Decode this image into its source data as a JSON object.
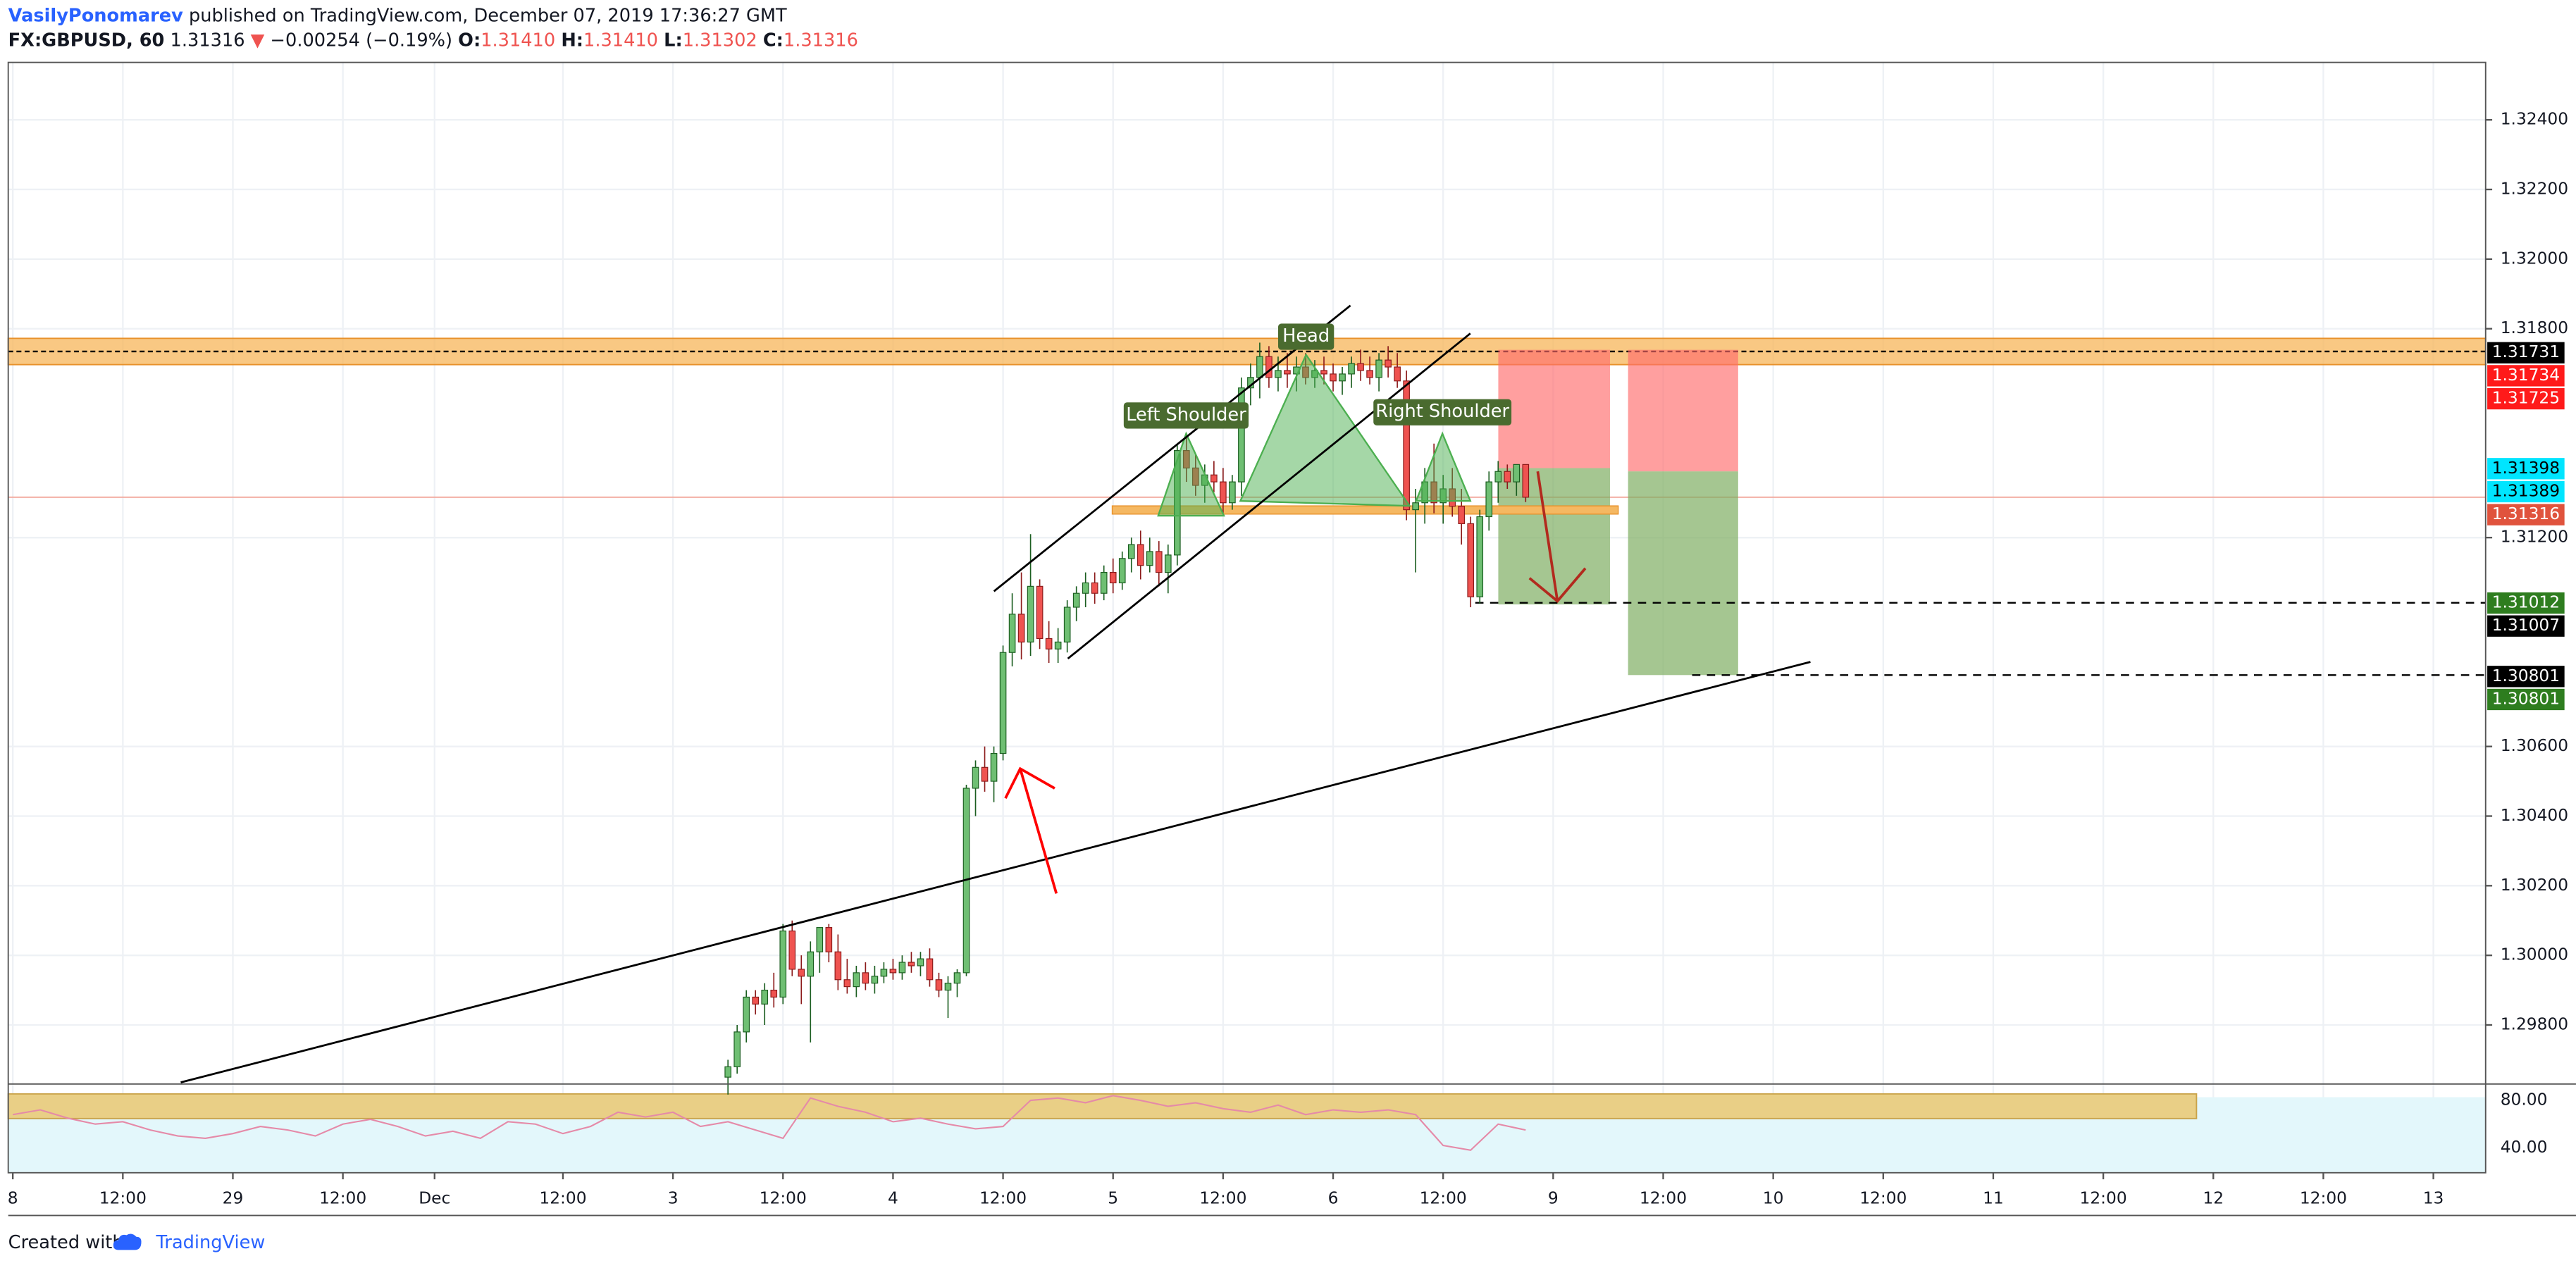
{
  "header": {
    "author": "VasilyPonomarev",
    "published": "published on TradingView.com, December 07, 2019 17:36:27 GMT",
    "symbol": "FX:GBPUSD, 60",
    "last": "1.31316",
    "arrow": "▼",
    "change": "−0.00254 (−0.19%)",
    "ohlc": [
      {
        "key": "O:",
        "value": "1.31410"
      },
      {
        "key": "H:",
        "value": "1.31410"
      },
      {
        "key": "L:",
        "value": "1.31302"
      },
      {
        "key": "C:",
        "value": "1.31316"
      }
    ]
  },
  "footer": {
    "created_with": "Created with",
    "brand": "TradingView"
  },
  "chart_data": {
    "type": "candlestick",
    "up_color": "#6fbf73",
    "down_color": "#ef5350",
    "grid": true,
    "x": [
      78,
      79,
      80,
      81,
      82,
      83,
      84,
      85,
      86,
      87,
      88,
      89,
      90,
      91,
      92,
      93,
      94,
      95,
      96,
      97,
      98,
      99,
      100,
      101,
      102,
      103,
      104,
      105,
      106,
      107,
      108,
      109,
      110,
      111,
      112,
      113,
      114,
      115,
      116,
      117,
      118,
      119,
      120,
      121,
      122,
      123,
      124,
      125,
      126,
      127,
      128,
      129,
      130,
      131,
      132,
      133,
      134,
      135,
      136,
      137,
      138,
      139,
      140,
      141,
      142,
      143,
      144,
      145,
      146,
      147,
      148,
      149,
      150,
      151,
      152,
      153,
      154,
      155,
      156,
      157,
      158,
      159,
      160,
      161,
      162,
      163,
      164,
      165
    ],
    "open": [
      1.2965,
      1.2968,
      1.2978,
      1.2988,
      1.2986,
      1.299,
      1.2988,
      1.3007,
      1.2996,
      1.2994,
      1.3001,
      1.3008,
      1.3001,
      1.2993,
      1.2991,
      1.2995,
      1.2992,
      1.2994,
      1.2996,
      1.2995,
      1.2998,
      1.2997,
      1.2999,
      1.2993,
      1.299,
      1.2992,
      1.2995,
      1.3048,
      1.3054,
      1.305,
      1.3058,
      1.3087,
      1.3098,
      1.309,
      1.3106,
      1.3091,
      1.3088,
      1.309,
      1.31,
      1.3104,
      1.3107,
      1.3104,
      1.311,
      1.3107,
      1.3114,
      1.3118,
      1.3112,
      1.3116,
      1.311,
      1.3115,
      1.3145,
      1.314,
      1.3135,
      1.3138,
      1.3136,
      1.313,
      1.3136,
      1.3163,
      1.3166,
      1.3172,
      1.3166,
      1.3168,
      1.3167,
      1.3169,
      1.3166,
      1.3168,
      1.3167,
      1.3165,
      1.3167,
      1.317,
      1.3168,
      1.3166,
      1.3171,
      1.3169,
      1.3165,
      1.3128,
      1.313,
      1.3136,
      1.313,
      1.3134,
      1.3129,
      1.3124,
      1.3103,
      1.3126,
      1.3136,
      1.3139,
      1.3136,
      1.3141
    ],
    "high": [
      1.297,
      1.298,
      1.299,
      1.299,
      1.2992,
      1.2995,
      1.3009,
      1.301,
      1.3,
      1.3004,
      1.3007,
      1.3009,
      1.3006,
      1.2999,
      1.2997,
      1.2998,
      1.2997,
      1.2998,
      1.2999,
      1.3,
      1.3001,
      1.3001,
      1.3002,
      1.2995,
      1.2994,
      1.2996,
      1.3049,
      1.3056,
      1.306,
      1.306,
      1.3089,
      1.3104,
      1.311,
      1.3121,
      1.3108,
      1.3096,
      1.3094,
      1.3102,
      1.3106,
      1.311,
      1.311,
      1.3112,
      1.3114,
      1.3116,
      1.312,
      1.3122,
      1.312,
      1.3119,
      1.3118,
      1.3147,
      1.315,
      1.3144,
      1.3141,
      1.3142,
      1.314,
      1.3138,
      1.3166,
      1.317,
      1.3176,
      1.3175,
      1.3172,
      1.3173,
      1.3172,
      1.3173,
      1.3171,
      1.3172,
      1.317,
      1.3169,
      1.3172,
      1.3174,
      1.3172,
      1.3173,
      1.3175,
      1.3173,
      1.3168,
      1.3134,
      1.314,
      1.3147,
      1.3138,
      1.314,
      1.3134,
      1.3126,
      1.3128,
      1.3139,
      1.3142,
      1.3141,
      1.3141,
      1.3141
    ],
    "low": [
      1.296,
      1.2966,
      1.2975,
      1.2983,
      1.298,
      1.2985,
      1.2986,
      1.2994,
      1.2986,
      1.2975,
      1.2995,
      1.2998,
      1.299,
      1.2989,
      1.2988,
      1.299,
      1.2989,
      1.2992,
      1.2993,
      1.2993,
      1.2995,
      1.2994,
      1.2991,
      1.2988,
      1.2982,
      1.2988,
      1.2994,
      1.304,
      1.3047,
      1.3044,
      1.3056,
      1.3083,
      1.3085,
      1.3086,
      1.3088,
      1.3084,
      1.3084,
      1.3087,
      1.3096,
      1.31,
      1.3101,
      1.3102,
      1.3104,
      1.3105,
      1.311,
      1.3108,
      1.311,
      1.3106,
      1.3104,
      1.3112,
      1.3136,
      1.3132,
      1.313,
      1.3133,
      1.3127,
      1.3128,
      1.3132,
      1.3158,
      1.316,
      1.3163,
      1.3162,
      1.3163,
      1.3162,
      1.3164,
      1.3163,
      1.3164,
      1.3162,
      1.3161,
      1.3163,
      1.3165,
      1.3164,
      1.3162,
      1.3166,
      1.3163,
      1.3125,
      1.311,
      1.3124,
      1.3127,
      1.3124,
      1.3126,
      1.3118,
      1.31,
      1.3101,
      1.3122,
      1.313,
      1.3134,
      1.3132,
      1.31302
    ],
    "close": [
      1.2968,
      1.2978,
      1.2988,
      1.2986,
      1.299,
      1.2988,
      1.3007,
      1.2996,
      1.2994,
      1.3001,
      1.3008,
      1.3001,
      1.2993,
      1.2991,
      1.2995,
      1.2992,
      1.2994,
      1.2996,
      1.2995,
      1.2998,
      1.2997,
      1.2999,
      1.2993,
      1.299,
      1.2992,
      1.2995,
      1.3048,
      1.3054,
      1.305,
      1.3058,
      1.3087,
      1.3098,
      1.309,
      1.3106,
      1.3091,
      1.3088,
      1.309,
      1.31,
      1.3104,
      1.3107,
      1.3104,
      1.311,
      1.3107,
      1.3114,
      1.3118,
      1.3112,
      1.3116,
      1.311,
      1.3115,
      1.3145,
      1.314,
      1.3135,
      1.3138,
      1.3136,
      1.313,
      1.3136,
      1.3163,
      1.3166,
      1.3172,
      1.3166,
      1.3168,
      1.3167,
      1.3169,
      1.3166,
      1.3168,
      1.3167,
      1.3165,
      1.3167,
      1.317,
      1.3168,
      1.3166,
      1.3171,
      1.3169,
      1.3165,
      1.3128,
      1.313,
      1.3136,
      1.313,
      1.3134,
      1.3129,
      1.3124,
      1.3103,
      1.3126,
      1.3136,
      1.3139,
      1.3136,
      1.3141,
      1.31316
    ],
    "xlim": [
      -0.5,
      269.7
    ],
    "xticks": [
      {
        "value": 0,
        "label": "8"
      },
      {
        "value": 12,
        "label": "12:00"
      },
      {
        "value": 24,
        "label": "29"
      },
      {
        "value": 36,
        "label": "12:00"
      },
      {
        "value": 46,
        "label": "Dec"
      },
      {
        "value": 60,
        "label": "12:00"
      },
      {
        "value": 72,
        "label": "3"
      },
      {
        "value": 84,
        "label": "12:00"
      },
      {
        "value": 96,
        "label": "4"
      },
      {
        "value": 108,
        "label": "12:00"
      },
      {
        "value": 120,
        "label": "5"
      },
      {
        "value": 132,
        "label": "12:00"
      },
      {
        "value": 144,
        "label": "6"
      },
      {
        "value": 156,
        "label": "12:00"
      },
      {
        "value": 168,
        "label": "9"
      },
      {
        "value": 180,
        "label": "12:00"
      },
      {
        "value": 192,
        "label": "10"
      },
      {
        "value": 204,
        "label": "12:00"
      },
      {
        "value": 216,
        "label": "11"
      },
      {
        "value": 228,
        "label": "12:00"
      },
      {
        "value": 240,
        "label": "12"
      },
      {
        "value": 252,
        "label": "12:00"
      },
      {
        "value": 264,
        "label": "13"
      }
    ],
    "ylim": [
      1.29635,
      1.32565
    ],
    "yticks": [
      {
        "value": 1.324,
        "label": "1.32400"
      },
      {
        "value": 1.322,
        "label": "1.32200"
      },
      {
        "value": 1.32,
        "label": "1.32000"
      },
      {
        "value": 1.318,
        "label": "1.31800"
      },
      {
        "value": 1.312,
        "label": "1.31200"
      },
      {
        "value": 1.306,
        "label": "1.30600"
      },
      {
        "value": 1.304,
        "label": "1.30400"
      },
      {
        "value": 1.302,
        "label": "1.30200"
      },
      {
        "value": 1.3,
        "label": "1.30000"
      },
      {
        "value": 1.298,
        "label": "1.29800"
      }
    ],
    "price_labels": [
      {
        "value": 1.31731,
        "color": "#000000",
        "text_color": "#ffffff"
      },
      {
        "value": 1.31734,
        "color": "#ff1a1a",
        "text_color": "#ffffff"
      },
      {
        "value": 1.31725,
        "color": "#ff1a1a",
        "text_color": "#ffffff"
      },
      {
        "value": 1.31398,
        "color": "#00e5ff",
        "text_color": "#000000"
      },
      {
        "value": 1.31389,
        "color": "#00e5ff",
        "text_color": "#000000"
      },
      {
        "value": 1.31316,
        "color": "#e0533d",
        "text_color": "#ffffff"
      },
      {
        "value": 1.31012,
        "color": "#2e7d1f",
        "text_color": "#ffffff"
      },
      {
        "value": 1.31007,
        "color": "#000000",
        "text_color": "#ffffff"
      },
      {
        "value": 1.30801,
        "color": "#000000",
        "text_color": "#ffffff"
      },
      {
        "value": 1.30801,
        "color": "#2e7d1f",
        "text_color": "#ffffff"
      }
    ],
    "annotations": [
      "Left Shoulder",
      "Head",
      "Right Shoulder"
    ],
    "rsi": {
      "color": "#e58aa8",
      "ylim": [
        19,
        91
      ],
      "yticks": [
        {
          "value": 80,
          "label": "80.00"
        },
        {
          "value": 40,
          "label": "40.00"
        }
      ],
      "x": [
        0,
        3,
        6,
        9,
        12,
        15,
        18,
        21,
        24,
        27,
        30,
        33,
        36,
        39,
        42,
        45,
        48,
        51,
        54,
        57,
        60,
        63,
        66,
        69,
        72,
        75,
        78,
        81,
        84,
        87,
        90,
        93,
        96,
        99,
        102,
        105,
        108,
        111,
        114,
        117,
        120,
        123,
        126,
        129,
        132,
        135,
        138,
        141,
        144,
        147,
        150,
        153,
        156,
        159,
        162,
        165
      ],
      "values": [
        68,
        72,
        65,
        60,
        62,
        55,
        50,
        48,
        52,
        58,
        55,
        50,
        60,
        64,
        58,
        50,
        54,
        48,
        62,
        60,
        52,
        58,
        70,
        66,
        70,
        58,
        62,
        55,
        48,
        82,
        75,
        70,
        62,
        65,
        60,
        56,
        58,
        80,
        82,
        78,
        84,
        80,
        75,
        78,
        73,
        70,
        76,
        68,
        72,
        70,
        72,
        68,
        42,
        38,
        60,
        55
      ]
    }
  }
}
